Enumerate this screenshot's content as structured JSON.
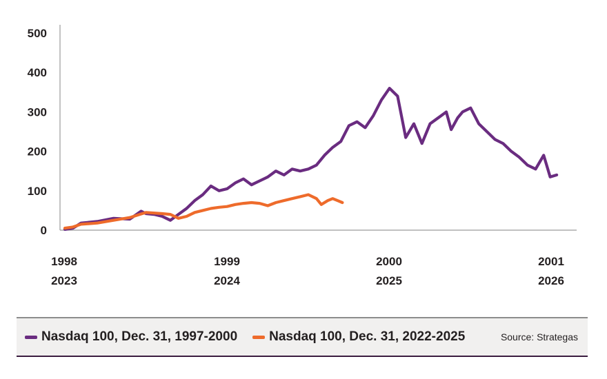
{
  "chart_data": {
    "type": "line",
    "title": "",
    "xlabel": "",
    "ylabel": "",
    "ylim": [
      0,
      500
    ],
    "yticks": [
      "0",
      "100",
      "200",
      "300",
      "400",
      "500"
    ],
    "x_range": [
      0,
      3
    ],
    "xticks": [
      {
        "line1": "1998",
        "line2": "2023"
      },
      {
        "line1": "1999",
        "line2": "2024"
      },
      {
        "line1": "2000",
        "line2": "2025"
      },
      {
        "line1": "2001",
        "line2": "2026"
      }
    ],
    "grid": false,
    "legend_placement": "bottom",
    "series": [
      {
        "name": "Nasdaq 100, Dec. 31, 1997-2000",
        "color": "#6a2c80",
        "x": [
          0,
          0.05,
          0.1,
          0.2,
          0.3,
          0.4,
          0.47,
          0.5,
          0.55,
          0.6,
          0.65,
          0.7,
          0.75,
          0.8,
          0.85,
          0.9,
          0.95,
          1.0,
          1.05,
          1.1,
          1.15,
          1.2,
          1.25,
          1.3,
          1.35,
          1.4,
          1.45,
          1.5,
          1.55,
          1.6,
          1.65,
          1.7,
          1.75,
          1.8,
          1.85,
          1.9,
          1.95,
          2.0,
          2.05,
          2.1,
          2.15,
          2.2,
          2.25,
          2.3,
          2.35,
          2.38,
          2.42,
          2.45,
          2.5,
          2.55,
          2.6,
          2.65,
          2.7,
          2.75,
          2.8,
          2.85,
          2.9,
          2.95,
          2.99,
          3.03
        ],
        "values": [
          2,
          5,
          18,
          22,
          30,
          28,
          48,
          42,
          40,
          35,
          25,
          40,
          55,
          75,
          90,
          112,
          100,
          105,
          120,
          130,
          115,
          125,
          135,
          150,
          140,
          155,
          150,
          155,
          165,
          190,
          210,
          225,
          265,
          275,
          260,
          290,
          330,
          360,
          340,
          235,
          270,
          220,
          270,
          285,
          300,
          255,
          285,
          300,
          310,
          270,
          250,
          230,
          220,
          200,
          185,
          165,
          155,
          190,
          135,
          140
        ]
      },
      {
        "name": "Nasdaq 100, Dec. 31, 2022-2025",
        "color": "#ee6b2b",
        "x": [
          0,
          0.05,
          0.1,
          0.2,
          0.3,
          0.4,
          0.5,
          0.6,
          0.65,
          0.7,
          0.75,
          0.8,
          0.85,
          0.9,
          0.95,
          1.0,
          1.05,
          1.1,
          1.15,
          1.2,
          1.25,
          1.3,
          1.35,
          1.4,
          1.45,
          1.5,
          1.55,
          1.58,
          1.62,
          1.65,
          1.68,
          1.71
        ],
        "values": [
          5,
          8,
          15,
          18,
          25,
          32,
          45,
          42,
          40,
          30,
          35,
          45,
          50,
          55,
          58,
          60,
          65,
          68,
          70,
          68,
          62,
          70,
          75,
          80,
          85,
          90,
          80,
          65,
          75,
          80,
          75,
          70
        ]
      }
    ]
  },
  "source": "Source: Strategas"
}
